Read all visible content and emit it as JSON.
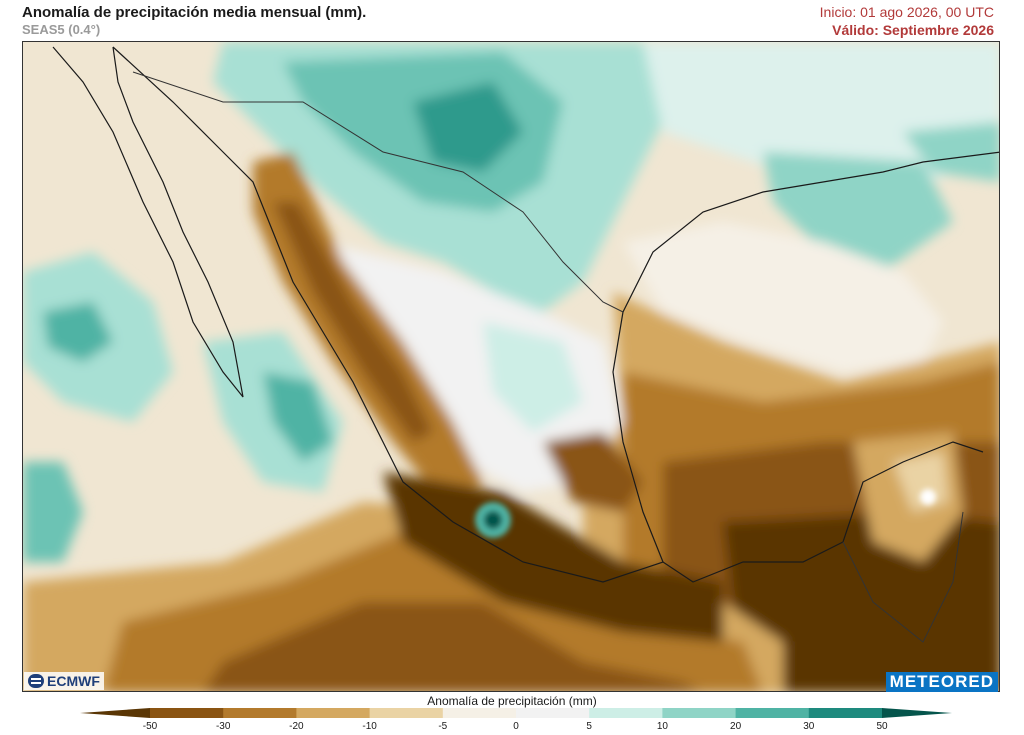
{
  "header": {
    "title": "Anomalía de precipitación media mensual (mm).",
    "model": "SEAS5 (0.4°)",
    "init": "Inicio: 01 ago 2026, 00 UTC",
    "valid": "Válido: Septiembre 2026"
  },
  "logos": {
    "left": "ECMWF",
    "right": "METEORED"
  },
  "colorbar": {
    "title": "Anomalía de precipitación (mm)",
    "ticks": [
      "-50",
      "-30",
      "-20",
      "-10",
      "-5",
      "0",
      "5",
      "10",
      "20",
      "30",
      "50"
    ],
    "colors": [
      "#5a3605",
      "#8a5412",
      "#b37a2c",
      "#d4a860",
      "#ead3a4",
      "#f5f0e6",
      "#f2f2f2",
      "#cdeee6",
      "#8fd4c6",
      "#4fb3a4",
      "#1e8a7e",
      "#05554c"
    ]
  }
}
